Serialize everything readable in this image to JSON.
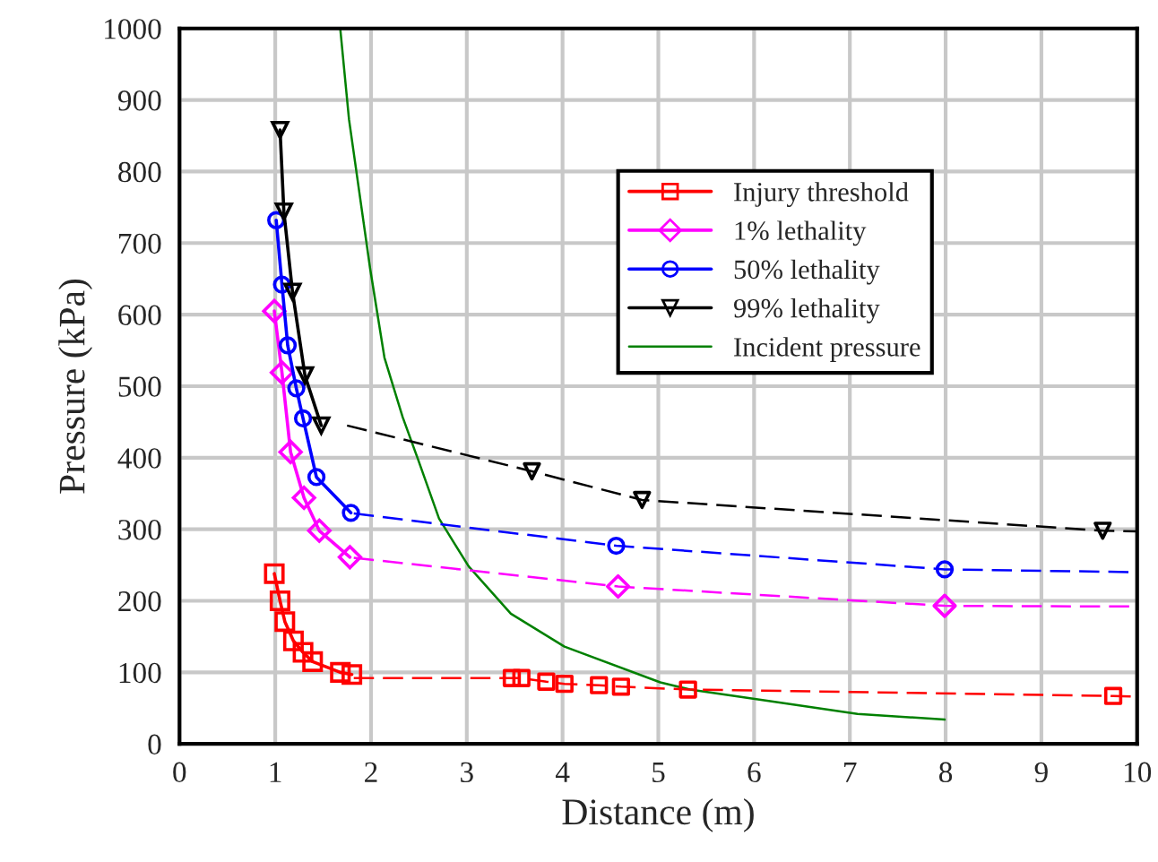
{
  "chart_data": {
    "type": "line",
    "xlabel": "Distance (m)",
    "ylabel": "Pressure (kPa)",
    "xlim": [
      0,
      10
    ],
    "ylim": [
      0,
      1000
    ],
    "xticks": [
      0,
      1,
      2,
      3,
      4,
      5,
      6,
      7,
      8,
      9,
      10
    ],
    "yticks": [
      0,
      100,
      200,
      300,
      400,
      500,
      600,
      700,
      800,
      900,
      1000
    ],
    "grid": true,
    "legend": "top right",
    "series": [
      {
        "name": "Injury threshold",
        "color": "#ff0000",
        "marker": "square",
        "line_style": "solid",
        "x": [
          0.99,
          1.05,
          1.1,
          1.19,
          1.29,
          1.39,
          1.68,
          1.8
        ],
        "values": [
          238,
          200,
          171,
          144,
          128,
          115,
          100,
          97
        ]
      },
      {
        "name": "1% lethality",
        "color": "#ff00ff",
        "marker": "diamond",
        "line_style": "solid",
        "x": [
          0.99,
          1.07,
          1.16,
          1.3,
          1.46,
          1.78
        ],
        "values": [
          605,
          519,
          408,
          344,
          298,
          261
        ]
      },
      {
        "name": "50% lethality",
        "color": "#0000ff",
        "marker": "circle",
        "line_style": "solid",
        "x": [
          1.01,
          1.07,
          1.13,
          1.22,
          1.29,
          1.43,
          1.79
        ],
        "values": [
          732,
          642,
          557,
          497,
          455,
          373,
          323
        ]
      },
      {
        "name": "99% lethality",
        "color": "#000000",
        "marker": "triangle",
        "line_style": "solid",
        "x": [
          1.05,
          1.09,
          1.18,
          1.31,
          1.48
        ],
        "values": [
          858,
          744,
          632,
          515,
          445
        ]
      },
      {
        "name": "Incident pressure",
        "color": "#008000",
        "marker": "none",
        "line_style": "solid",
        "x": [
          1.68,
          1.77,
          1.99,
          2.14,
          2.33,
          2.49,
          2.71,
          3.02,
          3.46,
          4.02,
          5.02,
          5.33,
          6.2,
          7.08,
          7.99
        ],
        "values": [
          998,
          873,
          665,
          540,
          457,
          398,
          315,
          248,
          182,
          136,
          86,
          76,
          59,
          42,
          34
        ]
      },
      {
        "color": "#ff0000",
        "marker": "none",
        "line_style": "dashed",
        "x": [
          1.82,
          3.47,
          3.57,
          3.83,
          4.02,
          4.38,
          4.61,
          5.31,
          9.75,
          10
        ],
        "values": [
          92,
          92,
          92,
          87,
          84,
          82,
          80,
          76,
          67,
          66
        ]
      },
      {
        "color": "#ff00ff",
        "marker": "none",
        "line_style": "dashed",
        "x": [
          1.82,
          4.58,
          7.99,
          10
        ],
        "values": [
          260,
          220,
          193,
          192
        ]
      },
      {
        "color": "#0000ff",
        "marker": "none",
        "line_style": "dashed",
        "x": [
          1.82,
          4.56,
          7.99,
          10
        ],
        "values": [
          322,
          277,
          244,
          240
        ]
      },
      {
        "color": "#000000",
        "marker": "none",
        "line_style": "dashed",
        "x": [
          1.75,
          3.68,
          4.83,
          9.64,
          10
        ],
        "values": [
          445,
          381,
          341,
          298,
          297
        ]
      },
      {
        "type": "scatter",
        "color": "#ff0000",
        "marker": "square",
        "x": [
          3.47,
          3.57,
          3.83,
          4.02,
          4.38,
          4.61,
          5.31,
          9.75
        ],
        "values": [
          92,
          92,
          87,
          84,
          82,
          80,
          76,
          67
        ]
      },
      {
        "type": "scatter",
        "color": "#ff00ff",
        "marker": "diamond",
        "x": [
          4.58,
          7.99
        ],
        "values": [
          220,
          193
        ]
      },
      {
        "type": "scatter",
        "color": "#0000ff",
        "marker": "circle",
        "x": [
          4.56,
          7.99
        ],
        "values": [
          277,
          244
        ]
      },
      {
        "type": "scatter",
        "color": "#000000",
        "marker": "triangle",
        "x": [
          3.68,
          4.83,
          9.64
        ],
        "values": [
          381,
          341,
          298
        ]
      }
    ]
  }
}
